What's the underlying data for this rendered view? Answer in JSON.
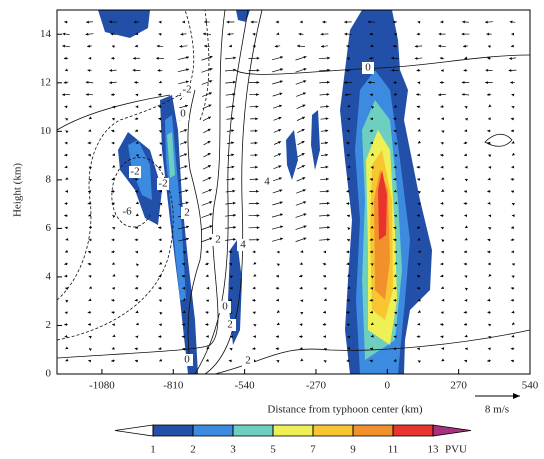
{
  "chart_data": {
    "type": "cross-section",
    "xlabel": "Distance from typhoon center (km)",
    "ylabel": "Height (km)",
    "xlim": [
      -1250,
      540
    ],
    "xticks": [
      -1080,
      -810,
      -540,
      -270,
      0,
      270,
      540
    ],
    "ylim": [
      0,
      15
    ],
    "yticks": [
      0,
      2,
      4,
      6,
      8,
      10,
      12,
      14
    ],
    "colorbar": {
      "levels": [
        1,
        2,
        3,
        5,
        7,
        9,
        11,
        13
      ],
      "colors": [
        "#2250a8",
        "#3c8be0",
        "#6ccfbf",
        "#eef055",
        "#f8c630",
        "#f2902c",
        "#e8342c"
      ],
      "over_color": "#a8307e",
      "under_color": "#ffffff",
      "unit": "PVU"
    },
    "vector_reference": {
      "label": "8 m/s"
    },
    "contour_labels": [
      "0",
      "-2",
      "0",
      "-2",
      "-2",
      "-6",
      "2",
      "2",
      "4",
      "4",
      "0",
      "2",
      "0",
      "2"
    ]
  }
}
